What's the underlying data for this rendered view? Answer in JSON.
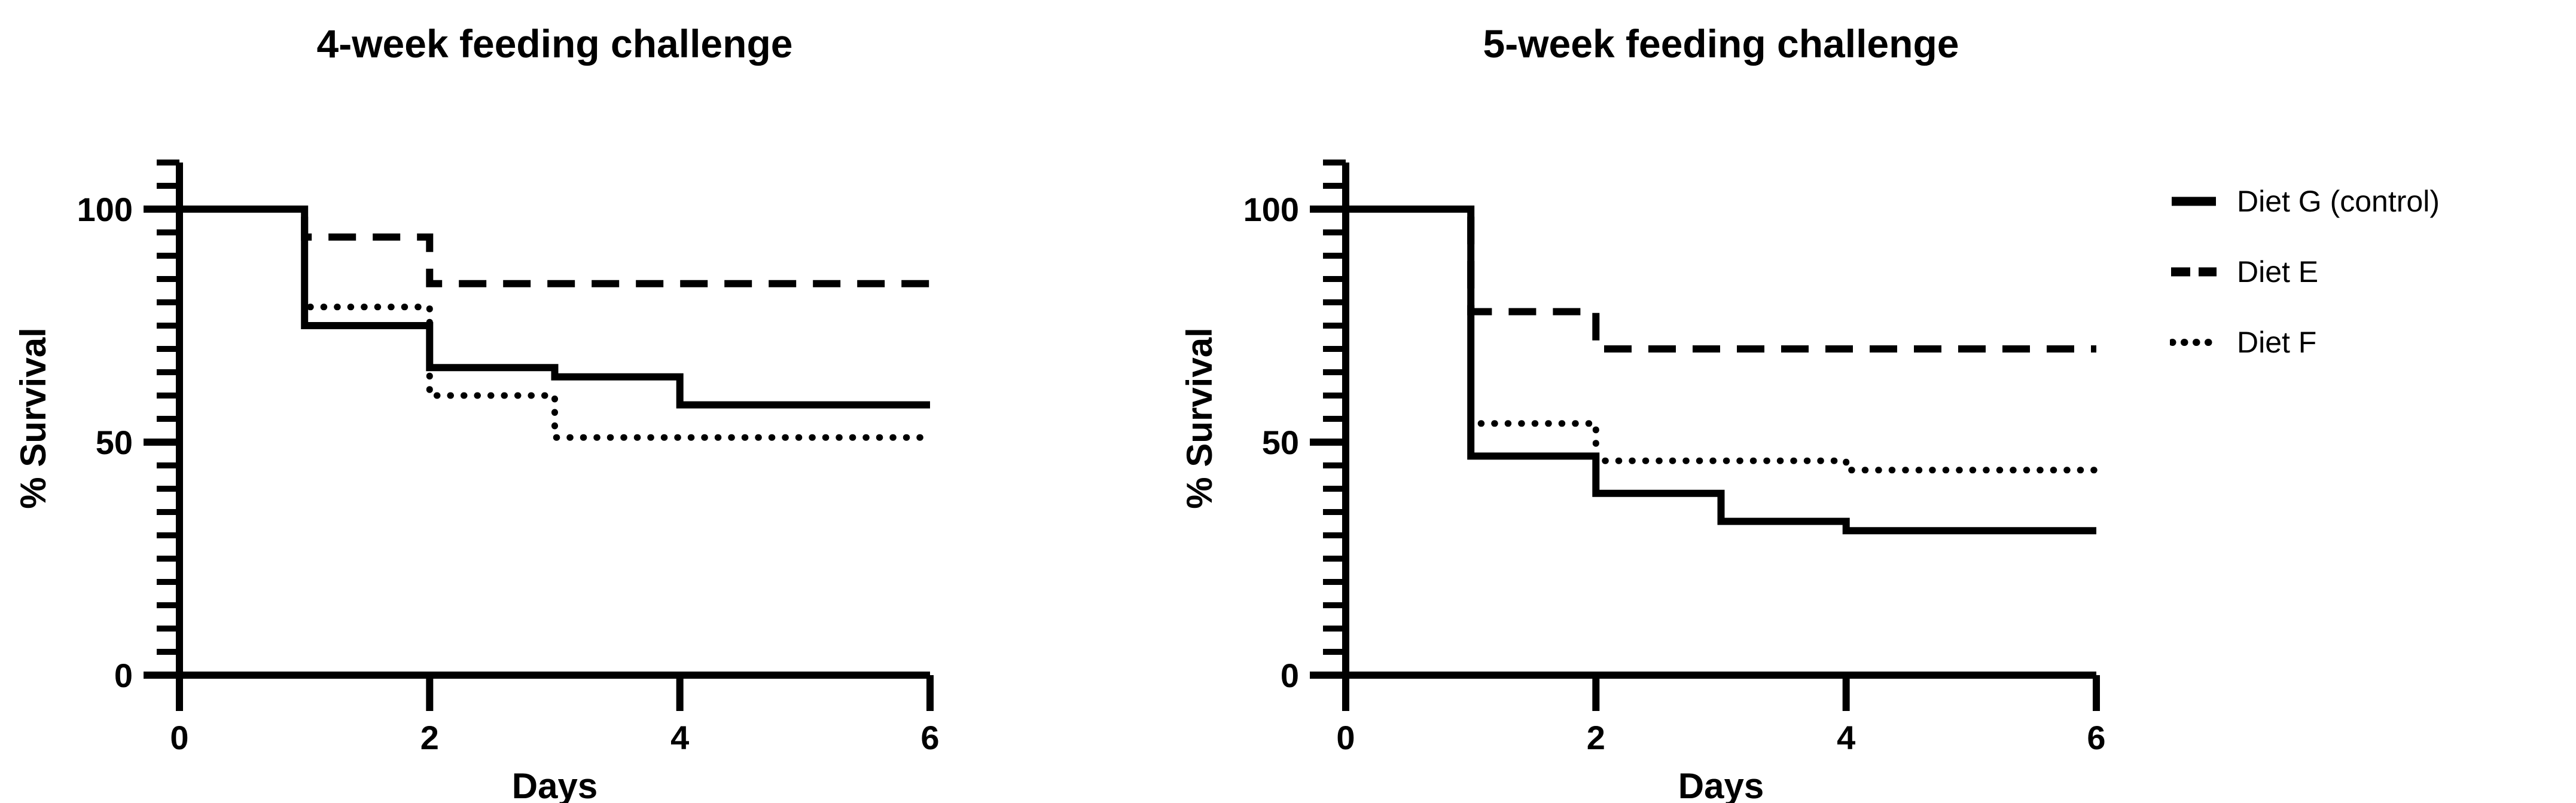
{
  "figure": {
    "background": "#ffffff",
    "ink": "#000000"
  },
  "legend": {
    "items": [
      {
        "label": "Diet G (control)",
        "style": "solid"
      },
      {
        "label": "Diet E",
        "style": "dashed"
      },
      {
        "label": "Diet F",
        "style": "dotted"
      }
    ]
  },
  "chart_data": [
    {
      "type": "line",
      "variant": "step-survival",
      "title": "4-week feeding challenge",
      "xlabel": "Days",
      "ylabel": "% Survival",
      "xlim": [
        0,
        6
      ],
      "ylim": [
        0,
        110
      ],
      "xticks": [
        0,
        2,
        4,
        6
      ],
      "yticks_major": [
        0,
        50,
        100
      ],
      "ytick_minor_interval": 5,
      "grid": false,
      "legend_position": "outside-right-of-second-chart",
      "series": [
        {
          "name": "Diet G (control)",
          "style": "solid",
          "points": [
            [
              0,
              100
            ],
            [
              1,
              100
            ],
            [
              1,
              75
            ],
            [
              2,
              75
            ],
            [
              2,
              66
            ],
            [
              3,
              66
            ],
            [
              3,
              64
            ],
            [
              4,
              64
            ],
            [
              4,
              58
            ],
            [
              6,
              58
            ]
          ]
        },
        {
          "name": "Diet E",
          "style": "dashed",
          "points": [
            [
              0,
              100
            ],
            [
              1,
              100
            ],
            [
              1,
              94
            ],
            [
              2,
              94
            ],
            [
              2,
              84
            ],
            [
              6,
              84
            ]
          ]
        },
        {
          "name": "Diet F",
          "style": "dotted",
          "points": [
            [
              0,
              100
            ],
            [
              1,
              100
            ],
            [
              1,
              79
            ],
            [
              2,
              79
            ],
            [
              2,
              60
            ],
            [
              3,
              60
            ],
            [
              3,
              51
            ],
            [
              6,
              51
            ]
          ]
        }
      ]
    },
    {
      "type": "line",
      "variant": "step-survival",
      "title": "5-week feeding challenge",
      "xlabel": "Days",
      "ylabel": "% Survival",
      "xlim": [
        0,
        6
      ],
      "ylim": [
        0,
        110
      ],
      "xticks": [
        0,
        2,
        4,
        6
      ],
      "yticks_major": [
        0,
        50,
        100
      ],
      "ytick_minor_interval": 5,
      "grid": false,
      "series": [
        {
          "name": "Diet G (control)",
          "style": "solid",
          "points": [
            [
              0,
              100
            ],
            [
              1,
              100
            ],
            [
              1,
              47
            ],
            [
              2,
              47
            ],
            [
              2,
              39
            ],
            [
              3,
              39
            ],
            [
              3,
              33
            ],
            [
              4,
              33
            ],
            [
              4,
              31
            ],
            [
              6,
              31
            ]
          ]
        },
        {
          "name": "Diet E",
          "style": "dashed",
          "points": [
            [
              0,
              100
            ],
            [
              1,
              100
            ],
            [
              1,
              78
            ],
            [
              2,
              78
            ],
            [
              2,
              70
            ],
            [
              6,
              70
            ]
          ]
        },
        {
          "name": "Diet F",
          "style": "dotted",
          "points": [
            [
              0,
              100
            ],
            [
              1,
              100
            ],
            [
              1,
              54
            ],
            [
              2,
              54
            ],
            [
              2,
              46
            ],
            [
              4,
              46
            ],
            [
              4,
              44
            ],
            [
              6,
              44
            ]
          ]
        }
      ]
    }
  ]
}
